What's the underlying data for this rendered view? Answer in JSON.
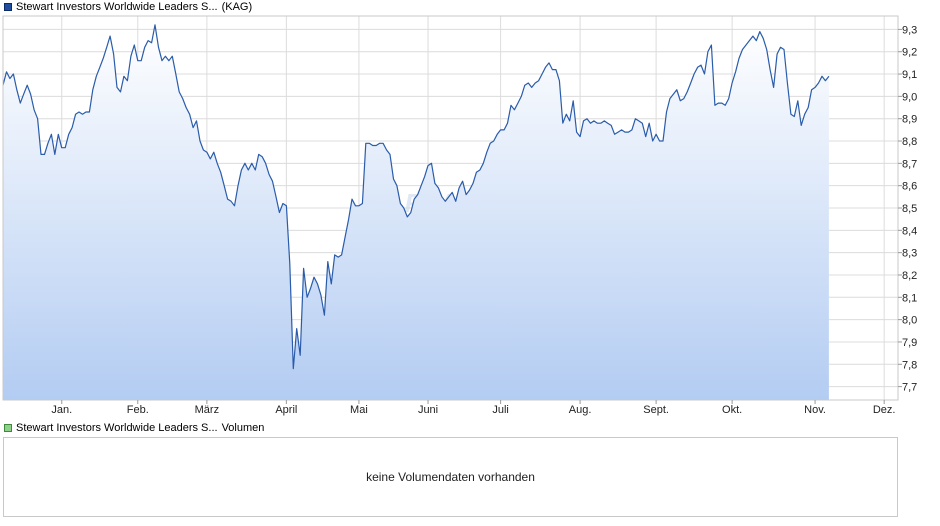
{
  "legend": {
    "price_label": "Stewart Investors Worldwide Leaders S...",
    "price_tag": "(KAG)",
    "volume_label": "Stewart Investors Worldwide Leaders S...",
    "volume_tag": "Volumen"
  },
  "volume": {
    "message": "keine Volumendaten vorhanden"
  },
  "watermark": "ARIVA.DE",
  "colors": {
    "line": "#2a5caa",
    "area_top": "#ffffff",
    "area_bottom": "#b3ccf2",
    "grid": "#dcdcdc",
    "price_swatch": "#1f4e9e",
    "volume_swatch": "#8fd18a"
  },
  "chart_data": {
    "type": "area",
    "title": "",
    "xlabel": "",
    "ylabel": "",
    "grid": true,
    "legend_position": "top-left",
    "y_axis_side": "right",
    "ylim": [
      7.64,
      9.36
    ],
    "yticks": [
      7.7,
      7.8,
      7.9,
      8.0,
      8.1,
      8.2,
      8.3,
      8.4,
      8.5,
      8.6,
      8.7,
      8.8,
      8.9,
      9.0,
      9.1,
      9.2,
      9.3
    ],
    "ytick_labels": [
      "7,7",
      "7,8",
      "7,9",
      "8,0",
      "8,1",
      "8,2",
      "8,3",
      "8,4",
      "8,5",
      "8,6",
      "8,7",
      "8,8",
      "8,9",
      "9,0",
      "9,1",
      "9,2",
      "9,3"
    ],
    "xlim": [
      0,
      259
    ],
    "xticks": [
      {
        "pos": 17,
        "label": "Jan."
      },
      {
        "pos": 39,
        "label": "Feb."
      },
      {
        "pos": 59,
        "label": "März"
      },
      {
        "pos": 82,
        "label": "April"
      },
      {
        "pos": 103,
        "label": "Mai"
      },
      {
        "pos": 123,
        "label": "Juni"
      },
      {
        "pos": 144,
        "label": "Juli"
      },
      {
        "pos": 167,
        "label": "Aug."
      },
      {
        "pos": 189,
        "label": "Sept."
      },
      {
        "pos": 211,
        "label": "Okt."
      },
      {
        "pos": 235,
        "label": "Nov."
      },
      {
        "pos": 255,
        "label": "Dez."
      }
    ],
    "series": [
      {
        "values": [
          9.05,
          9.11,
          9.08,
          9.1,
          9.03,
          8.97,
          9.01,
          9.05,
          9.01,
          8.94,
          8.9,
          8.74,
          8.74,
          8.79,
          8.83,
          8.74,
          8.83,
          8.77,
          8.77,
          8.83,
          8.86,
          8.92,
          8.93,
          8.92,
          8.93,
          8.93,
          9.03,
          9.09,
          9.13,
          9.17,
          9.22,
          9.27,
          9.19,
          9.04,
          9.02,
          9.09,
          9.07,
          9.18,
          9.23,
          9.16,
          9.16,
          9.22,
          9.25,
          9.24,
          9.32,
          9.22,
          9.16,
          9.18,
          9.16,
          9.18,
          9.1,
          9.02,
          8.99,
          8.95,
          8.92,
          8.86,
          8.89,
          8.8,
          8.76,
          8.75,
          8.72,
          8.75,
          8.7,
          8.66,
          8.6,
          8.54,
          8.53,
          8.51,
          8.6,
          8.67,
          8.7,
          8.67,
          8.7,
          8.67,
          8.74,
          8.73,
          8.7,
          8.65,
          8.62,
          8.55,
          8.48,
          8.52,
          8.51,
          8.25,
          7.78,
          7.96,
          7.84,
          8.23,
          8.1,
          8.14,
          8.19,
          8.16,
          8.11,
          8.02,
          8.26,
          8.16,
          8.29,
          8.28,
          8.29,
          8.37,
          8.45,
          8.54,
          8.51,
          8.51,
          8.52,
          8.79,
          8.79,
          8.78,
          8.78,
          8.79,
          8.79,
          8.76,
          8.74,
          8.63,
          8.6,
          8.52,
          8.5,
          8.46,
          8.48,
          8.54,
          8.56,
          8.6,
          8.64,
          8.69,
          8.7,
          8.61,
          8.59,
          8.55,
          8.53,
          8.55,
          8.57,
          8.53,
          8.59,
          8.62,
          8.56,
          8.58,
          8.61,
          8.66,
          8.67,
          8.7,
          8.75,
          8.79,
          8.8,
          8.83,
          8.85,
          8.85,
          8.88,
          8.96,
          8.94,
          8.97,
          9.0,
          9.05,
          9.06,
          9.04,
          9.06,
          9.07,
          9.1,
          9.13,
          9.15,
          9.12,
          9.12,
          9.07,
          8.88,
          8.92,
          8.89,
          8.98,
          8.84,
          8.82,
          8.89,
          8.9,
          8.88,
          8.89,
          8.88,
          8.88,
          8.89,
          8.88,
          8.87,
          8.83,
          8.84,
          8.85,
          8.84,
          8.84,
          8.85,
          8.9,
          8.89,
          8.88,
          8.82,
          8.88,
          8.8,
          8.83,
          8.8,
          8.8,
          8.93,
          8.99,
          9.01,
          9.03,
          8.98,
          8.99,
          9.02,
          9.06,
          9.1,
          9.13,
          9.14,
          9.1,
          9.2,
          9.23,
          8.96,
          8.97,
          8.97,
          8.96,
          8.99,
          9.06,
          9.11,
          9.17,
          9.21,
          9.23,
          9.25,
          9.27,
          9.25,
          9.29,
          9.26,
          9.21,
          9.12,
          9.04,
          9.19,
          9.22,
          9.21,
          9.06,
          8.92,
          8.91,
          8.98,
          8.87,
          8.92,
          8.95,
          9.03,
          9.04,
          9.06,
          9.09,
          9.07,
          9.09
        ]
      }
    ]
  }
}
